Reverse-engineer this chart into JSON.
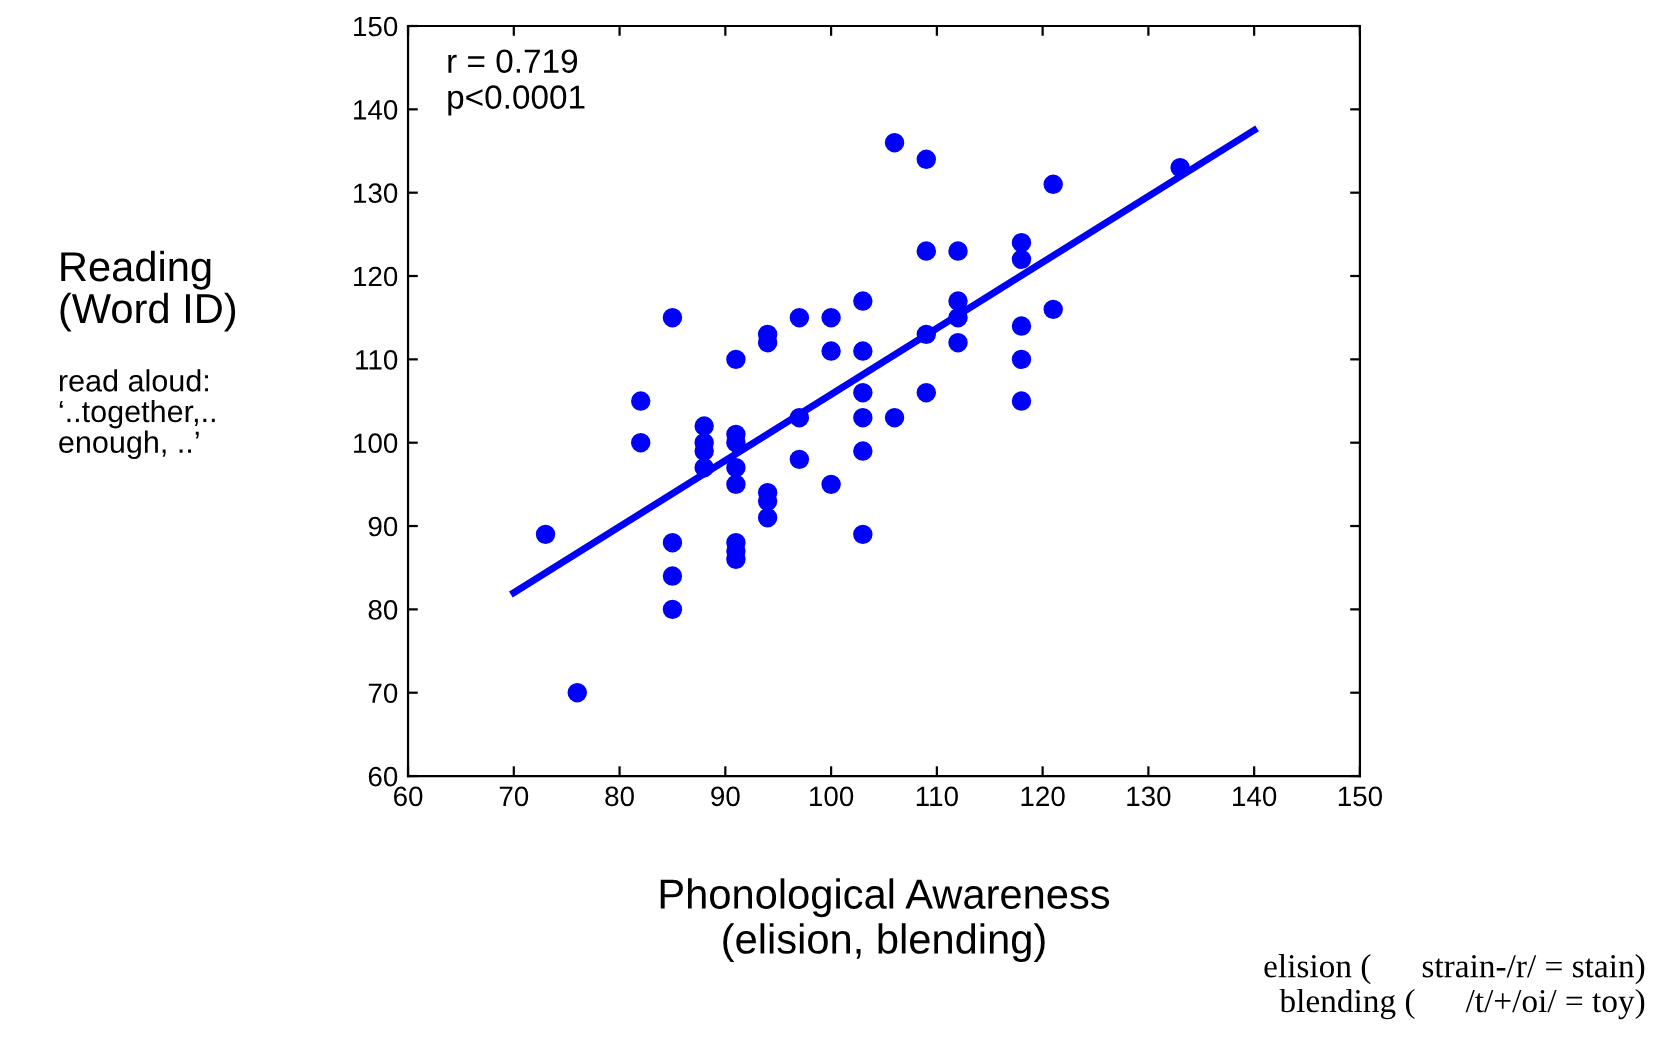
{
  "chart_data": {
    "type": "scatter",
    "xlabel": "Phonological Awareness\n(elision, blending)",
    "ylabel": "Reading\n(Word ID)",
    "annotations": [
      "r = 0.719\np<0.0001",
      "read aloud:\n‘..together,..\nenough, ..’",
      "elision (      strain-/r/ = stain)\nblending (      /t/+/oi/ = toy)"
    ],
    "series": [
      {
        "color": "#0000ff",
        "marker": "circle",
        "x": [
          73,
          76,
          82,
          82,
          85,
          85,
          85,
          85,
          88,
          88,
          88,
          88,
          91,
          91,
          91,
          91,
          91,
          91,
          91,
          91,
          94,
          94,
          94,
          94,
          94,
          97,
          97,
          97,
          100,
          100,
          100,
          103,
          103,
          103,
          103,
          103,
          103,
          106,
          106,
          109,
          109,
          109,
          109,
          112,
          112,
          112,
          112,
          118,
          118,
          118,
          118,
          118,
          121,
          121,
          133
        ],
        "values": [
          89,
          70,
          105,
          100,
          115,
          88,
          84,
          80,
          102,
          100,
          99,
          97,
          110,
          101,
          100,
          97,
          95,
          88,
          87,
          86,
          113,
          112,
          94,
          93,
          91,
          115,
          103,
          98,
          115,
          111,
          95,
          117,
          111,
          106,
          103,
          99,
          89,
          136,
          103,
          134,
          123,
          113,
          106,
          123,
          117,
          115,
          112,
          124,
          122,
          114,
          110,
          105,
          131,
          116,
          133
        ]
      },
      {
        "type": "line",
        "color": "#0000ff",
        "marker": "none",
        "line_style": "solid",
        "x": [
          70,
          140
        ],
        "values": [
          82,
          137.5
        ]
      }
    ],
    "xlim": [
      60,
      150
    ],
    "ylim": [
      60,
      150
    ],
    "xticks": [
      60,
      70,
      80,
      90,
      100,
      110,
      120,
      130,
      140,
      150
    ],
    "yticks": [
      60,
      70,
      80,
      90,
      100,
      110,
      120,
      130,
      140,
      150
    ],
    "grid": false,
    "legend": false
  }
}
